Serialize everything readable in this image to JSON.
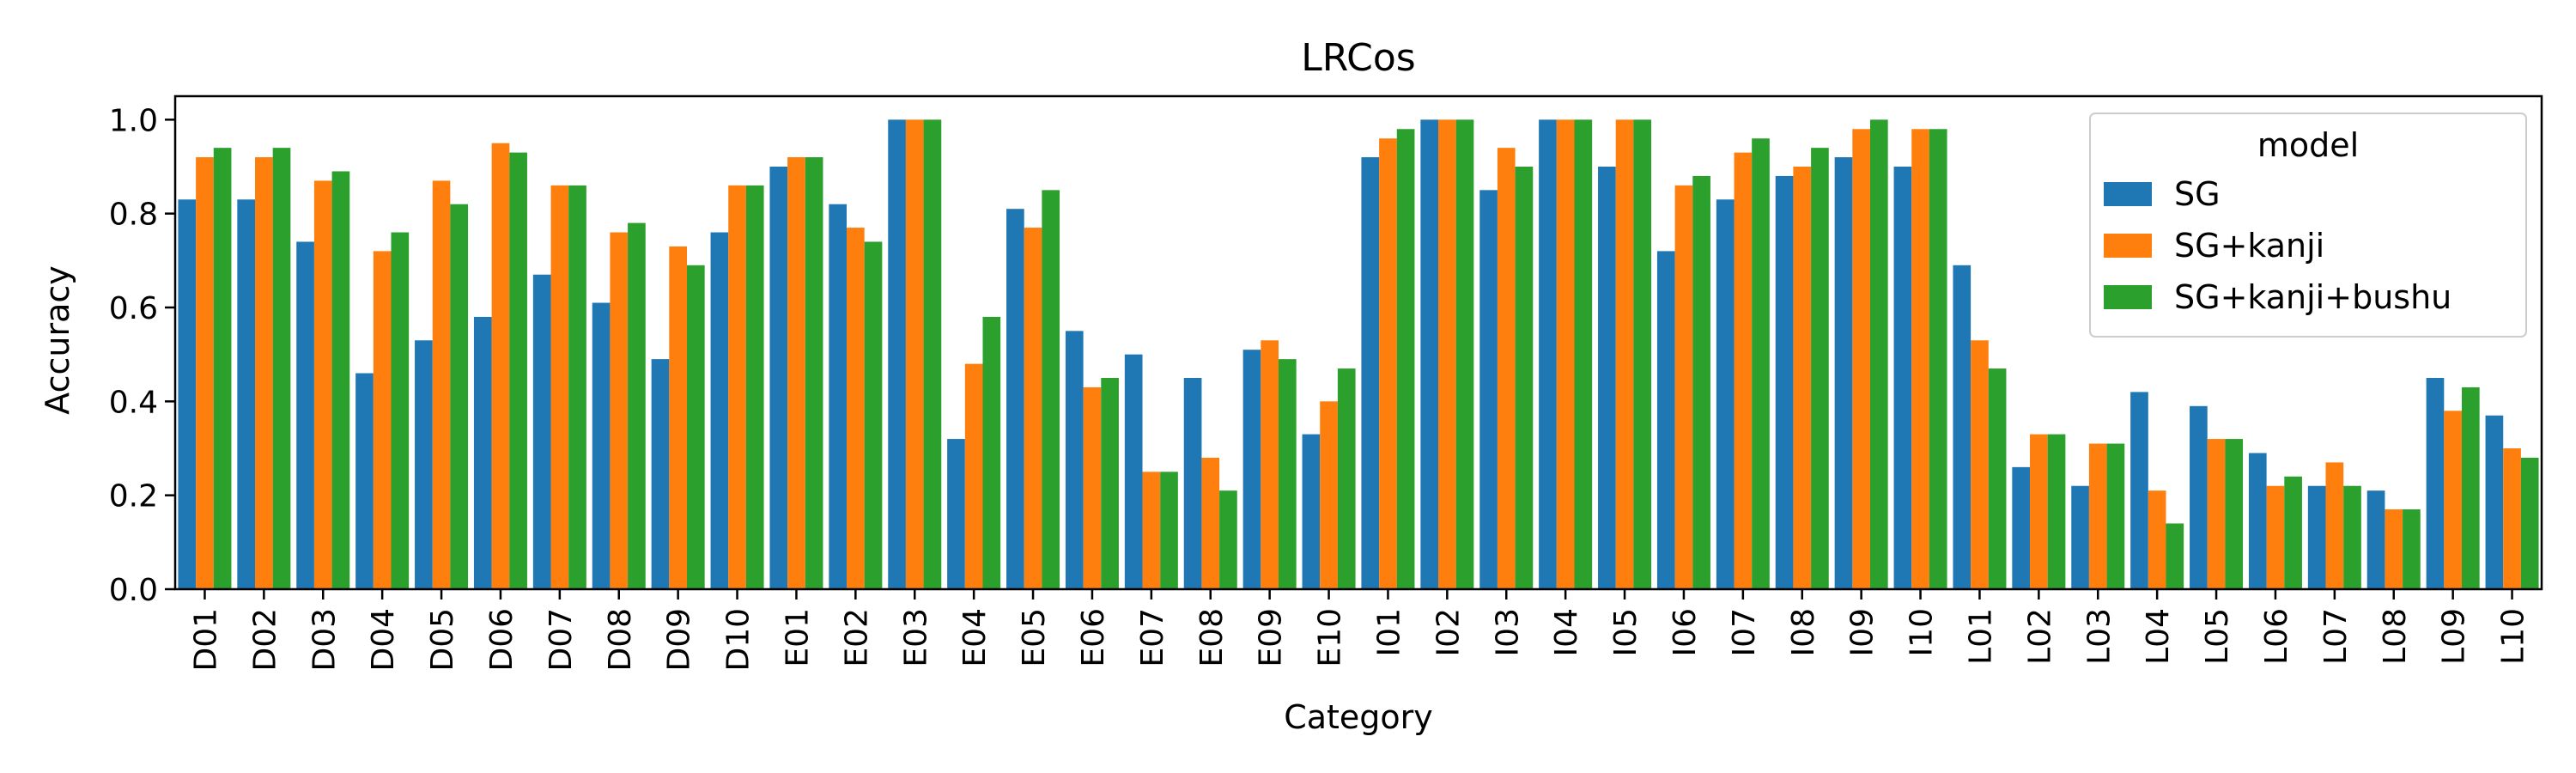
{
  "chart_data": {
    "type": "bar",
    "title": "LRCos",
    "xlabel": "Category",
    "ylabel": "Accuracy",
    "ylim": [
      0,
      1.05
    ],
    "yticks": [
      "0.0",
      "0.2",
      "0.4",
      "0.6",
      "0.8",
      "1.0"
    ],
    "ytick_values": [
      0,
      0.2,
      0.4,
      0.6,
      0.8,
      1.0
    ],
    "grid": false,
    "legend": {
      "title": "model",
      "placement": "top-right"
    },
    "categories": [
      "D01",
      "D02",
      "D03",
      "D04",
      "D05",
      "D06",
      "D07",
      "D08",
      "D09",
      "D10",
      "E01",
      "E02",
      "E03",
      "E04",
      "E05",
      "E06",
      "E07",
      "E08",
      "E09",
      "E10",
      "I01",
      "I02",
      "I03",
      "I04",
      "I05",
      "I06",
      "I07",
      "I08",
      "I09",
      "I10",
      "L01",
      "L02",
      "L03",
      "L04",
      "L05",
      "L06",
      "L07",
      "L08",
      "L09",
      "L10"
    ],
    "series": [
      {
        "name": "SG",
        "color": "#1f77b4",
        "values": [
          0.83,
          0.83,
          0.74,
          0.46,
          0.53,
          0.58,
          0.67,
          0.61,
          0.49,
          0.76,
          0.9,
          0.82,
          1.0,
          0.32,
          0.81,
          0.55,
          0.5,
          0.45,
          0.51,
          0.33,
          0.92,
          1.0,
          0.85,
          1.0,
          0.9,
          0.72,
          0.83,
          0.88,
          0.92,
          0.9,
          0.69,
          0.26,
          0.22,
          0.42,
          0.39,
          0.29,
          0.22,
          0.21,
          0.45,
          0.37
        ]
      },
      {
        "name": "SG+kanji",
        "color": "#ff7f0e",
        "values": [
          0.92,
          0.92,
          0.87,
          0.72,
          0.87,
          0.95,
          0.86,
          0.76,
          0.73,
          0.86,
          0.92,
          0.77,
          1.0,
          0.48,
          0.77,
          0.43,
          0.25,
          0.28,
          0.53,
          0.4,
          0.96,
          1.0,
          0.94,
          1.0,
          1.0,
          0.86,
          0.93,
          0.9,
          0.98,
          0.98,
          0.53,
          0.33,
          0.31,
          0.21,
          0.32,
          0.22,
          0.27,
          0.17,
          0.38,
          0.3
        ]
      },
      {
        "name": "SG+kanji+bushu",
        "color": "#2ca02c",
        "values": [
          0.94,
          0.94,
          0.89,
          0.76,
          0.82,
          0.93,
          0.86,
          0.78,
          0.69,
          0.86,
          0.92,
          0.74,
          1.0,
          0.58,
          0.85,
          0.45,
          0.25,
          0.21,
          0.49,
          0.47,
          0.98,
          1.0,
          0.9,
          1.0,
          1.0,
          0.88,
          0.96,
          0.94,
          1.0,
          0.98,
          0.47,
          0.33,
          0.31,
          0.14,
          0.32,
          0.24,
          0.22,
          0.17,
          0.43,
          0.28
        ]
      }
    ]
  }
}
